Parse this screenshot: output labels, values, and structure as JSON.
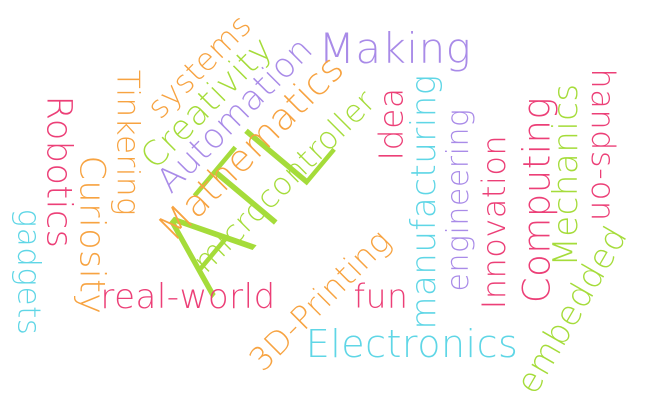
{
  "word_cloud": {
    "colors": {
      "pink": "#ec3f77",
      "orange": "#f7a341",
      "purple": "#a98be8",
      "green": "#a5dc3a",
      "cyan": "#5fd6e6"
    },
    "words": [
      {
        "text": "ATL",
        "color": "#a5dc3a"
      },
      {
        "text": "Making",
        "color": "#a98be8"
      },
      {
        "text": "systems",
        "color": "#f7a341"
      },
      {
        "text": "Creativity",
        "color": "#a5dc3a"
      },
      {
        "text": "Automation",
        "color": "#a98be8"
      },
      {
        "text": "Mathematics",
        "color": "#f7a341"
      },
      {
        "text": "microcontroller",
        "color": "#a5dc3a"
      },
      {
        "text": "Idea",
        "color": "#ec3f77"
      },
      {
        "text": "manufacturing",
        "color": "#5fd6e6"
      },
      {
        "text": "engineering",
        "color": "#a98be8"
      },
      {
        "text": "Innovation",
        "color": "#ec3f77"
      },
      {
        "text": "Computing",
        "color": "#ec3f77"
      },
      {
        "text": "Mechanics",
        "color": "#a5dc3a"
      },
      {
        "text": "hands-on",
        "color": "#ec3f77"
      },
      {
        "text": "embedded",
        "color": "#a5dc3a"
      },
      {
        "text": "Tinkering",
        "color": "#f7a341"
      },
      {
        "text": "Robotics",
        "color": "#ec3f77"
      },
      {
        "text": "Curiosity",
        "color": "#f7a341"
      },
      {
        "text": "gadgets",
        "color": "#5fd6e6"
      },
      {
        "text": "real-world",
        "color": "#ec3f77"
      },
      {
        "text": "3D-Printing",
        "color": "#f7a341"
      },
      {
        "text": "fun",
        "color": "#ec3f77"
      },
      {
        "text": "Electronics",
        "color": "#5fd6e6"
      }
    ]
  }
}
